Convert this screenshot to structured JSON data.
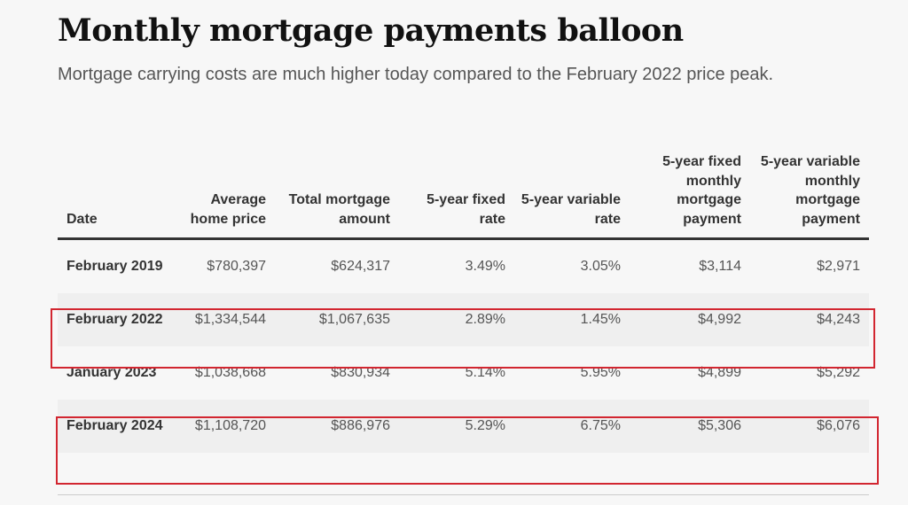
{
  "title": "Monthly mortgage payments balloon",
  "subtitle": "Mortgage carrying costs are much higher today compared to the February 2022 price peak.",
  "table": {
    "headers": [
      "Date",
      "Average home price",
      "Total mortgage amount",
      "5-year fixed rate",
      "5-year variable rate",
      "5-year fixed monthly mortgage payment",
      "5-year variable monthly mortgage payment"
    ],
    "rows": [
      [
        "February 2019",
        "$780,397",
        "$624,317",
        "3.49%",
        "3.05%",
        "$3,114",
        "$2,971"
      ],
      [
        "February 2022",
        "$1,334,544",
        "$1,067,635",
        "2.89%",
        "1.45%",
        "$4,992",
        "$4,243"
      ],
      [
        "January 2023",
        "$1,038,668",
        "$830,934",
        "5.14%",
        "5.95%",
        "$4,899",
        "$5,292"
      ],
      [
        "February 2024",
        "$1,108,720",
        "$886,976",
        "5.29%",
        "6.75%",
        "$5,306",
        "$6,076"
      ]
    ],
    "highlighted_rows": [
      "February 2022",
      "February 2024"
    ],
    "highlight_color": "#d22630"
  }
}
